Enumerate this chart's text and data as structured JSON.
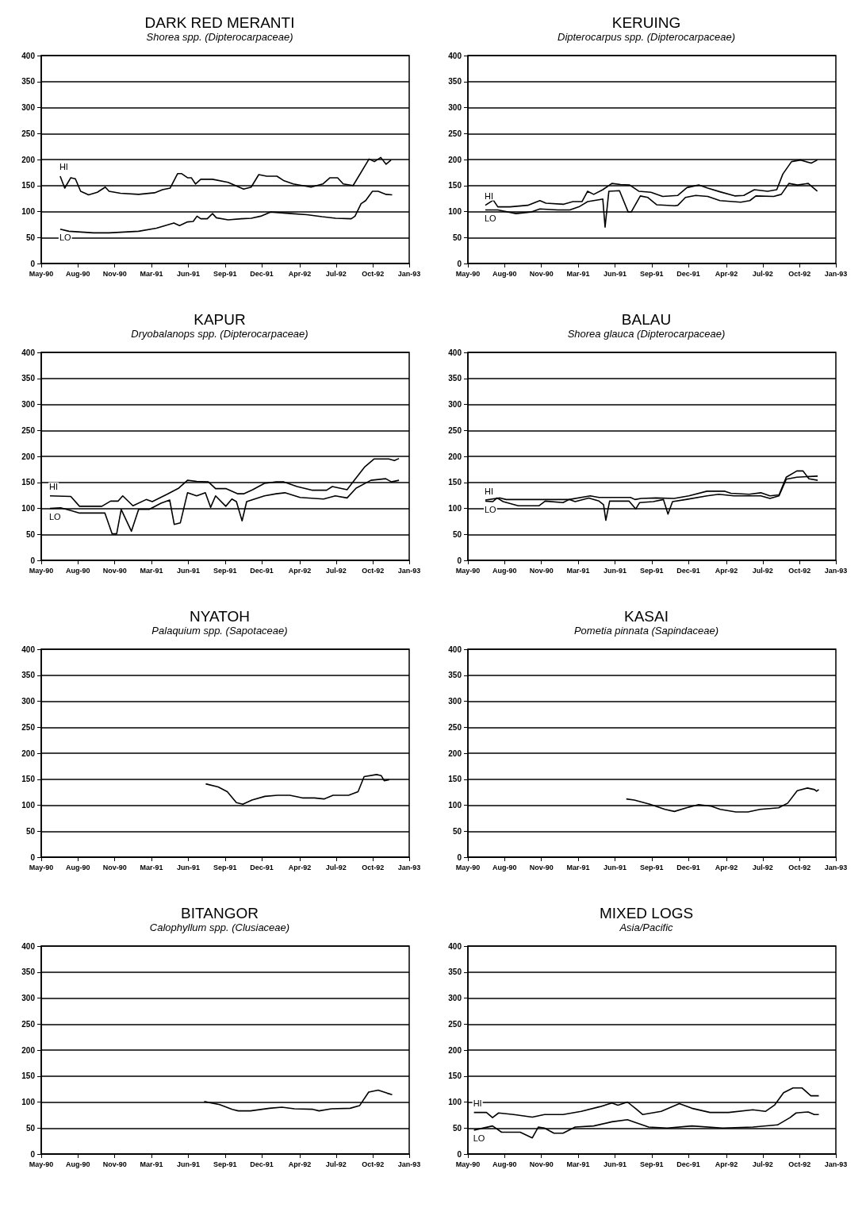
{
  "chart_data": [
    {
      "type": "line",
      "title": "DARK RED MERANTI",
      "subtitle": "Shorea spp. (Dipterocarpaceae)",
      "xlim": [
        "1990-05-20",
        "1993-01-15"
      ],
      "xticks": [
        {
          "value": "1990-05-20",
          "label": "May-90"
        },
        {
          "value": "1990-08-25",
          "label": "Aug-90"
        },
        {
          "value": "1990-11-30",
          "label": "Nov-90"
        },
        {
          "value": "1991-03-07",
          "label": "Mar-91"
        },
        {
          "value": "1991-06-12",
          "label": "Jun-91"
        },
        {
          "value": "1991-09-17",
          "label": "Sep-91"
        },
        {
          "value": "1991-12-23",
          "label": "Dec-91"
        },
        {
          "value": "1992-04-01",
          "label": "Apr-92"
        },
        {
          "value": "1992-07-06",
          "label": "Jul-92"
        },
        {
          "value": "1992-10-11",
          "label": "Oct-92"
        },
        {
          "value": "1993-01-15",
          "label": "Jan-93"
        }
      ],
      "ylim": [
        0,
        400
      ],
      "yticks": [
        0,
        50,
        100,
        150,
        200,
        250,
        300,
        350,
        400
      ],
      "grid": "y",
      "series": [
        {
          "name": "HI",
          "color": "#000000",
          "x": [
            "1990-07-09",
            "1990-07-21",
            "1990-08-06",
            "1990-08-18",
            "1990-09-01",
            "1990-09-22",
            "1990-10-15",
            "1990-11-05",
            "1990-11-15",
            "1990-12-15",
            "1991-02-01",
            "1991-03-15",
            "1991-04-05",
            "1991-04-25",
            "1991-05-15",
            "1991-05-25",
            "1991-06-10",
            "1991-06-20",
            "1991-07-01",
            "1991-07-15",
            "1991-08-15",
            "1991-09-25",
            "1991-11-05",
            "1991-11-25",
            "1991-12-15",
            "1992-01-05",
            "1992-02-01",
            "1992-02-20",
            "1992-03-15",
            "1992-05-01",
            "1992-06-01",
            "1992-06-20",
            "1992-07-10",
            "1992-07-25",
            "1992-08-20",
            "1992-10-01",
            "1992-10-15",
            "1992-11-01",
            "1992-11-15",
            "1992-11-28"
          ],
          "values": [
            168,
            145,
            165,
            163,
            139,
            132,
            137,
            147,
            139,
            135,
            133,
            136,
            142,
            145,
            173,
            173,
            165,
            165,
            153,
            162,
            162,
            156,
            143,
            147,
            171,
            168,
            168,
            159,
            153,
            147,
            153,
            165,
            165,
            153,
            150,
            201,
            196,
            204,
            191,
            199
          ]
        },
        {
          "name": "LO",
          "color": "#000000",
          "x": [
            "1990-07-09",
            "1990-08-01",
            "1990-10-05",
            "1990-11-15",
            "1991-02-01",
            "1991-03-20",
            "1991-05-05",
            "1991-05-20",
            "1991-06-10",
            "1991-06-25",
            "1991-07-05",
            "1991-07-15",
            "1991-08-01",
            "1991-08-15",
            "1991-08-25",
            "1991-09-25",
            "1991-10-30",
            "1991-11-25",
            "1991-12-20",
            "1992-01-15",
            "1992-03-10",
            "1992-04-20",
            "1992-05-30",
            "1992-07-05",
            "1992-08-15",
            "1992-08-25",
            "1992-09-10",
            "1992-09-22",
            "1992-10-10",
            "1992-10-25",
            "1992-11-15",
            "1992-12-01"
          ],
          "values": [
            66,
            62,
            59,
            59,
            62,
            68,
            78,
            73,
            80,
            81,
            91,
            86,
            86,
            96,
            88,
            84,
            86,
            87,
            91,
            99,
            96,
            94,
            90,
            87,
            86,
            91,
            115,
            121,
            139,
            139,
            133,
            132
          ]
        }
      ]
    },
    {
      "type": "line",
      "title": "KERUING",
      "subtitle": "Dipterocarpus spp. (Dipterocarpaceae)",
      "xlim": [
        "1990-05-20",
        "1993-01-15"
      ],
      "xticks": [
        {
          "value": "1990-05-20",
          "label": "May-90"
        },
        {
          "value": "1990-08-25",
          "label": "Aug-90"
        },
        {
          "value": "1990-11-30",
          "label": "Nov-90"
        },
        {
          "value": "1991-03-07",
          "label": "Mar-91"
        },
        {
          "value": "1991-06-12",
          "label": "Jun-91"
        },
        {
          "value": "1991-09-17",
          "label": "Sep-91"
        },
        {
          "value": "1991-12-23",
          "label": "Dec-91"
        },
        {
          "value": "1992-04-01",
          "label": "Apr-92"
        },
        {
          "value": "1992-07-06",
          "label": "Jul-92"
        },
        {
          "value": "1992-10-11",
          "label": "Oct-92"
        },
        {
          "value": "1993-01-15",
          "label": "Jan-93"
        }
      ],
      "ylim": [
        0,
        400
      ],
      "yticks": [
        0,
        50,
        100,
        150,
        200,
        250,
        300,
        350,
        400
      ],
      "grid": "y",
      "series": [
        {
          "name": "HI",
          "color": "#000000",
          "x": [
            "1990-07-05",
            "1990-07-26",
            "1990-08-07",
            "1990-09-08",
            "1990-10-25",
            "1990-11-26",
            "1990-12-12",
            "1991-01-28",
            "1991-02-21",
            "1991-03-17",
            "1991-04-01",
            "1991-04-17",
            "1991-05-11",
            "1991-06-04",
            "1991-06-27",
            "1991-07-21",
            "1991-08-14",
            "1991-09-15",
            "1991-10-16",
            "1991-11-25",
            "1991-12-19",
            "1992-01-19",
            "1992-02-12",
            "1992-03-15",
            "1992-04-23",
            "1992-05-17",
            "1992-06-14",
            "1992-07-19",
            "1992-08-12",
            "1992-08-28",
            "1992-09-20",
            "1992-10-14",
            "1992-11-11",
            "1992-11-27"
          ],
          "values": [
            112,
            122,
            109,
            109,
            112,
            121,
            116,
            114,
            119,
            119,
            139,
            133,
            142,
            154,
            152,
            151,
            139,
            137,
            129,
            131,
            146,
            151,
            145,
            138,
            130,
            131,
            142,
            139,
            142,
            172,
            196,
            199,
            193,
            199
          ]
        },
        {
          "name": "LO",
          "color": "#000000",
          "x": [
            "1990-07-05",
            "1990-08-07",
            "1990-09-24",
            "1990-11-02",
            "1990-11-26",
            "1991-01-12",
            "1991-02-13",
            "1991-03-09",
            "1991-04-01",
            "1991-05-03",
            "1991-05-11",
            "1991-05-17",
            "1991-05-27",
            "1991-06-24",
            "1991-07-17",
            "1991-07-25",
            "1991-08-18",
            "1991-09-07",
            "1991-09-30",
            "1991-11-17",
            "1991-11-25",
            "1991-12-15",
            "1992-01-11",
            "1992-02-12",
            "1992-03-15",
            "1992-05-09",
            "1992-06-02",
            "1992-06-18",
            "1992-08-04",
            "1992-08-24",
            "1992-09-13",
            "1992-10-06",
            "1992-11-03",
            "1992-11-27"
          ],
          "values": [
            103,
            103,
            96,
            99,
            105,
            103,
            103,
            109,
            119,
            123,
            124,
            70,
            139,
            140,
            99,
            99,
            130,
            127,
            113,
            111,
            112,
            127,
            131,
            129,
            121,
            118,
            121,
            130,
            129,
            133,
            154,
            151,
            154,
            139
          ]
        }
      ]
    },
    {
      "type": "line",
      "title": "KAPUR",
      "subtitle": "Dryobalanops spp. (Dipterocarpaceae)",
      "xlim": [
        "1990-05-20",
        "1993-01-15"
      ],
      "xticks": [
        {
          "value": "1990-05-20",
          "label": "May-90"
        },
        {
          "value": "1990-08-25",
          "label": "Aug-90"
        },
        {
          "value": "1990-11-30",
          "label": "Nov-90"
        },
        {
          "value": "1991-03-07",
          "label": "Mar-91"
        },
        {
          "value": "1991-06-12",
          "label": "Jun-91"
        },
        {
          "value": "1991-09-17",
          "label": "Sep-91"
        },
        {
          "value": "1991-12-23",
          "label": "Dec-91"
        },
        {
          "value": "1992-04-01",
          "label": "Apr-92"
        },
        {
          "value": "1992-07-06",
          "label": "Jul-92"
        },
        {
          "value": "1992-10-11",
          "label": "Oct-92"
        },
        {
          "value": "1993-01-15",
          "label": "Jan-93"
        }
      ],
      "ylim": [
        0,
        400
      ],
      "yticks": [
        0,
        50,
        100,
        150,
        200,
        250,
        300,
        350,
        400
      ],
      "grid": "y",
      "series": [
        {
          "name": "HI",
          "color": "#000000",
          "x": [
            "1990-06-12",
            "1990-08-06",
            "1990-08-29",
            "1990-10-27",
            "1990-11-19",
            "1990-12-09",
            "1990-12-21",
            "1991-01-17",
            "1991-02-21",
            "1991-03-09",
            "1991-04-17",
            "1991-05-18",
            "1991-06-10",
            "1991-07-04",
            "1991-08-04",
            "1991-08-23",
            "1991-09-19",
            "1991-10-21",
            "1991-11-05",
            "1991-11-29",
            "1991-12-30",
            "1992-01-30",
            "1992-02-18",
            "1992-03-25",
            "1992-05-03",
            "1992-06-11",
            "1992-06-26",
            "1992-08-04",
            "1992-08-20",
            "1992-09-20",
            "1992-10-14",
            "1992-11-22",
            "1992-12-07",
            "1992-12-19"
          ],
          "values": [
            124,
            123,
            104,
            104,
            114,
            114,
            124,
            105,
            117,
            113,
            127,
            139,
            154,
            152,
            151,
            138,
            138,
            128,
            128,
            136,
            148,
            151,
            151,
            142,
            135,
            135,
            142,
            136,
            151,
            180,
            195,
            195,
            192,
            196
          ]
        },
        {
          "name": "LO",
          "color": "#000000",
          "x": [
            "1990-06-12",
            "1990-07-10",
            "1990-08-10",
            "1990-08-29",
            "1990-11-04",
            "1990-11-23",
            "1990-12-05",
            "1990-12-17",
            "1991-01-13",
            "1991-02-01",
            "1991-03-01",
            "1991-04-01",
            "1991-04-24",
            "1991-05-06",
            "1991-05-22",
            "1991-06-10",
            "1991-07-04",
            "1991-07-27",
            "1991-08-10",
            "1991-08-23",
            "1991-09-19",
            "1991-10-05",
            "1991-10-17",
            "1991-11-01",
            "1991-11-13",
            "1991-12-30",
            "1992-01-30",
            "1992-02-22",
            "1992-04-02",
            "1992-06-03",
            "1992-07-04",
            "1992-08-04",
            "1992-08-28",
            "1992-10-06",
            "1992-11-14",
            "1992-11-29",
            "1992-12-19"
          ],
          "values": [
            100,
            101,
            95,
            91,
            91,
            51,
            51,
            98,
            56,
            98,
            98,
            110,
            116,
            69,
            72,
            130,
            124,
            130,
            102,
            124,
            104,
            118,
            113,
            76,
            113,
            124,
            128,
            130,
            121,
            118,
            124,
            120,
            139,
            154,
            157,
            151,
            154
          ]
        }
      ]
    },
    {
      "type": "line",
      "title": "BALAU",
      "subtitle": "Shorea glauca (Dipterocarpaceae)",
      "xlim": [
        "1990-05-20",
        "1993-01-15"
      ],
      "xticks": [
        {
          "value": "1990-05-20",
          "label": "May-90"
        },
        {
          "value": "1990-08-25",
          "label": "Aug-90"
        },
        {
          "value": "1990-11-30",
          "label": "Nov-90"
        },
        {
          "value": "1991-03-07",
          "label": "Mar-91"
        },
        {
          "value": "1991-06-12",
          "label": "Jun-91"
        },
        {
          "value": "1991-09-17",
          "label": "Sep-91"
        },
        {
          "value": "1991-12-23",
          "label": "Dec-91"
        },
        {
          "value": "1992-04-01",
          "label": "Apr-92"
        },
        {
          "value": "1992-07-06",
          "label": "Jul-92"
        },
        {
          "value": "1992-10-11",
          "label": "Oct-92"
        },
        {
          "value": "1993-01-15",
          "label": "Jan-93"
        }
      ],
      "ylim": [
        0,
        400
      ],
      "yticks": [
        0,
        50,
        100,
        150,
        200,
        250,
        300,
        350,
        400
      ],
      "grid": "y",
      "series": [
        {
          "name": "HI",
          "color": "#000000",
          "x": [
            "1990-07-05",
            "1990-08-13",
            "1990-08-29",
            "1990-11-24",
            "1991-02-11",
            "1991-04-08",
            "1991-05-01",
            "1991-07-23",
            "1991-08-04",
            "1991-08-20",
            "1991-09-28",
            "1991-11-15",
            "1991-12-24",
            "1992-02-10",
            "1992-03-28",
            "1992-04-13",
            "1992-05-31",
            "1992-07-01",
            "1992-07-25",
            "1992-08-18",
            "1992-09-06",
            "1992-10-04",
            "1992-10-20",
            "1992-11-05",
            "1992-11-28"
          ],
          "values": [
            116,
            120,
            117,
            117,
            117,
            124,
            121,
            121,
            117,
            119,
            120,
            119,
            124,
            133,
            133,
            129,
            127,
            130,
            124,
            126,
            160,
            172,
            172,
            157,
            154
          ]
        },
        {
          "name": "LO",
          "color": "#000000",
          "x": [
            "1990-07-05",
            "1990-07-25",
            "1990-08-05",
            "1990-08-21",
            "1990-09-30",
            "1990-11-24",
            "1990-12-10",
            "1991-01-26",
            "1991-02-11",
            "1991-02-27",
            "1991-04-04",
            "1991-05-01",
            "1991-05-13",
            "1991-05-19",
            "1991-05-29",
            "1991-07-19",
            "1991-08-06",
            "1991-08-16",
            "1991-09-21",
            "1991-10-18",
            "1991-10-30",
            "1991-11-11",
            "1991-12-16",
            "1992-02-10",
            "1992-03-12",
            "1992-04-21",
            "1992-07-01",
            "1992-07-25",
            "1992-08-18",
            "1992-09-06",
            "1992-10-04",
            "1992-11-28"
          ],
          "values": [
            114,
            113,
            120,
            113,
            105,
            105,
            114,
            111,
            117,
            113,
            120,
            114,
            107,
            77,
            114,
            114,
            99,
            111,
            113,
            117,
            89,
            113,
            117,
            124,
            127,
            124,
            124,
            119,
            124,
            156,
            160,
            162
          ]
        }
      ]
    },
    {
      "type": "line",
      "title": "NYATOH",
      "subtitle": "Palaquium spp. (Sapotaceae)",
      "xlim": [
        "1990-05-20",
        "1993-01-15"
      ],
      "xticks": [
        {
          "value": "1990-05-20",
          "label": "May-90"
        },
        {
          "value": "1990-08-25",
          "label": "Aug-90"
        },
        {
          "value": "1990-11-30",
          "label": "Nov-90"
        },
        {
          "value": "1991-03-07",
          "label": "Mar-91"
        },
        {
          "value": "1991-06-12",
          "label": "Jun-91"
        },
        {
          "value": "1991-09-17",
          "label": "Sep-91"
        },
        {
          "value": "1991-12-23",
          "label": "Dec-91"
        },
        {
          "value": "1992-04-01",
          "label": "Apr-92"
        },
        {
          "value": "1992-07-06",
          "label": "Jul-92"
        },
        {
          "value": "1992-10-11",
          "label": "Oct-92"
        },
        {
          "value": "1993-01-15",
          "label": "Jan-93"
        }
      ],
      "ylim": [
        0,
        400
      ],
      "yticks": [
        0,
        50,
        100,
        150,
        200,
        250,
        300,
        350,
        400
      ],
      "grid": "y",
      "series": [
        {
          "color": "#000000",
          "x": [
            "1991-07-28",
            "1991-08-30",
            "1991-09-23",
            "1991-10-17",
            "1991-11-03",
            "1991-11-27",
            "1991-12-31",
            "1992-02-02",
            "1992-03-06",
            "1992-04-08",
            "1992-05-10",
            "1992-06-04",
            "1992-06-28",
            "1992-08-08",
            "1992-09-02",
            "1992-09-18",
            "1992-10-21",
            "1992-11-02",
            "1992-11-10",
            "1992-11-23"
          ],
          "values": [
            141,
            135,
            126,
            105,
            102,
            110,
            117,
            119,
            119,
            114,
            114,
            112,
            119,
            119,
            126,
            155,
            159,
            157,
            147,
            149
          ]
        }
      ]
    },
    {
      "type": "line",
      "title": "KASAI",
      "subtitle": "Pometia pinnata (Sapindaceae)",
      "xlim": [
        "1990-05-20",
        "1993-01-15"
      ],
      "xticks": [
        {
          "value": "1990-05-20",
          "label": "May-90"
        },
        {
          "value": "1990-08-25",
          "label": "Aug-90"
        },
        {
          "value": "1990-11-30",
          "label": "Nov-90"
        },
        {
          "value": "1991-03-07",
          "label": "Mar-91"
        },
        {
          "value": "1991-06-12",
          "label": "Jun-91"
        },
        {
          "value": "1991-09-17",
          "label": "Sep-91"
        },
        {
          "value": "1991-12-23",
          "label": "Dec-91"
        },
        {
          "value": "1992-04-01",
          "label": "Apr-92"
        },
        {
          "value": "1992-07-06",
          "label": "Jul-92"
        },
        {
          "value": "1992-10-11",
          "label": "Oct-92"
        },
        {
          "value": "1993-01-15",
          "label": "Jan-93"
        }
      ],
      "ylim": [
        0,
        400
      ],
      "yticks": [
        0,
        50,
        100,
        150,
        200,
        250,
        300,
        350,
        400
      ],
      "grid": "y",
      "series": [
        {
          "color": "#000000",
          "x": [
            "1991-07-12",
            "1991-08-02",
            "1991-09-12",
            "1991-10-22",
            "1991-11-16",
            "1991-12-18",
            "1992-01-19",
            "1992-02-21",
            "1992-03-16",
            "1992-04-26",
            "1992-05-28",
            "1992-06-29",
            "1992-08-17",
            "1992-09-10",
            "1992-10-05",
            "1992-11-01",
            "1992-11-20",
            "1992-11-25",
            "1992-12-01"
          ],
          "values": [
            112,
            110,
            102,
            92,
            88,
            95,
            101,
            98,
            92,
            87,
            87,
            92,
            95,
            104,
            128,
            133,
            130,
            127,
            130
          ]
        }
      ]
    },
    {
      "type": "line",
      "title": "BITANGOR",
      "subtitle": "Calophyllum spp. (Clusiaceae)",
      "xlim": [
        "1990-05-20",
        "1993-01-15"
      ],
      "xticks": [
        {
          "value": "1990-05-20",
          "label": "May-90"
        },
        {
          "value": "1990-08-25",
          "label": "Aug-90"
        },
        {
          "value": "1990-11-30",
          "label": "Nov-90"
        },
        {
          "value": "1991-03-07",
          "label": "Mar-91"
        },
        {
          "value": "1991-06-12",
          "label": "Jun-91"
        },
        {
          "value": "1991-09-17",
          "label": "Sep-91"
        },
        {
          "value": "1991-12-23",
          "label": "Dec-91"
        },
        {
          "value": "1992-04-01",
          "label": "Apr-92"
        },
        {
          "value": "1992-07-06",
          "label": "Jul-92"
        },
        {
          "value": "1992-10-11",
          "label": "Oct-92"
        },
        {
          "value": "1993-01-15",
          "label": "Jan-93"
        }
      ],
      "ylim": [
        0,
        400
      ],
      "yticks": [
        0,
        50,
        100,
        150,
        200,
        250,
        300,
        350,
        400
      ],
      "grid": "y",
      "series": [
        {
          "color": "#000000",
          "x": [
            "1991-07-24",
            "1991-09-03",
            "1991-10-06",
            "1991-10-22",
            "1991-11-23",
            "1992-01-12",
            "1992-02-14",
            "1992-03-18",
            "1992-05-06",
            "1992-05-22",
            "1992-06-24",
            "1992-08-12",
            "1992-09-06",
            "1992-09-30",
            "1992-10-25",
            "1992-11-18",
            "1992-12-01"
          ],
          "values": [
            101,
            95,
            86,
            83,
            83,
            88,
            90,
            87,
            86,
            83,
            87,
            88,
            93,
            119,
            123,
            117,
            114
          ]
        }
      ]
    },
    {
      "type": "line",
      "title": "MIXED LOGS",
      "subtitle": "Asia/Pacific",
      "xlim": [
        "1990-05-20",
        "1993-01-15"
      ],
      "xticks": [
        {
          "value": "1990-05-20",
          "label": "May-90"
        },
        {
          "value": "1990-08-25",
          "label": "Aug-90"
        },
        {
          "value": "1990-11-30",
          "label": "Nov-90"
        },
        {
          "value": "1991-03-07",
          "label": "Mar-91"
        },
        {
          "value": "1991-06-12",
          "label": "Jun-91"
        },
        {
          "value": "1991-09-17",
          "label": "Sep-91"
        },
        {
          "value": "1991-12-23",
          "label": "Dec-91"
        },
        {
          "value": "1992-04-01",
          "label": "Apr-92"
        },
        {
          "value": "1992-07-06",
          "label": "Jul-92"
        },
        {
          "value": "1992-10-11",
          "label": "Oct-92"
        },
        {
          "value": "1993-01-15",
          "label": "Jan-93"
        }
      ],
      "ylim": [
        0,
        400
      ],
      "yticks": [
        0,
        50,
        100,
        150,
        200,
        250,
        300,
        350,
        400
      ],
      "grid": "y",
      "series": [
        {
          "name": "HI",
          "color": "#000000",
          "x": [
            "1990-06-05",
            "1990-07-08",
            "1990-07-24",
            "1990-08-09",
            "1990-09-18",
            "1990-11-06",
            "1990-12-08",
            "1991-01-26",
            "1991-03-15",
            "1991-05-03",
            "1991-06-04",
            "1991-06-20",
            "1991-07-15",
            "1991-08-08",
            "1991-08-24",
            "1991-10-12",
            "1991-11-29",
            "1992-01-01",
            "1992-02-18",
            "1992-04-07",
            "1992-06-10",
            "1992-07-13",
            "1992-08-06",
            "1992-08-30",
            "1992-09-24",
            "1992-10-18",
            "1992-11-10",
            "1992-11-25",
            "1992-12-01"
          ],
          "values": [
            80,
            80,
            70,
            79,
            76,
            71,
            76,
            76,
            82,
            91,
            98,
            94,
            100,
            86,
            76,
            82,
            97,
            88,
            80,
            80,
            85,
            82,
            94,
            118,
            127,
            127,
            112,
            112,
            112
          ]
        },
        {
          "name": "LO",
          "color": "#000000",
          "x": [
            "1990-06-05",
            "1990-07-24",
            "1990-08-17",
            "1990-10-05",
            "1990-11-06",
            "1990-11-22",
            "1990-12-08",
            "1991-01-02",
            "1991-01-26",
            "1991-02-27",
            "1991-04-17",
            "1991-06-04",
            "1991-07-15",
            "1991-08-08",
            "1991-09-09",
            "1991-10-28",
            "1992-01-01",
            "1992-03-22",
            "1992-06-10",
            "1992-08-14",
            "1992-09-16",
            "1992-10-02",
            "1992-11-03",
            "1992-11-19",
            "1992-12-01"
          ],
          "values": [
            46,
            54,
            42,
            42,
            31,
            52,
            50,
            40,
            40,
            52,
            54,
            62,
            66,
            60,
            52,
            50,
            54,
            50,
            52,
            56,
            70,
            79,
            81,
            76,
            76
          ]
        }
      ]
    }
  ]
}
